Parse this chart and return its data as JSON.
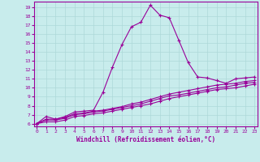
{
  "xlabel": "Windchill (Refroidissement éolien,°C)",
  "background_color": "#c8ecec",
  "line_color": "#990099",
  "grid_color": "#add8d8",
  "x_ticks": [
    0,
    1,
    2,
    3,
    4,
    5,
    6,
    7,
    8,
    9,
    10,
    11,
    12,
    13,
    14,
    15,
    16,
    17,
    18,
    19,
    20,
    21,
    22,
    23
  ],
  "y_ticks": [
    6,
    7,
    8,
    9,
    10,
    11,
    12,
    13,
    14,
    15,
    16,
    17,
    18,
    19
  ],
  "ylim": [
    5.7,
    19.6
  ],
  "xlim": [
    -0.3,
    23.3
  ],
  "series": [
    {
      "x": [
        0,
        1,
        2,
        3,
        4,
        5,
        6,
        7,
        8,
        9,
        10,
        11,
        12,
        13,
        14,
        15,
        16,
        17,
        18,
        19,
        20,
        21,
        22,
        23
      ],
      "y": [
        6.0,
        6.8,
        6.5,
        6.8,
        7.3,
        7.4,
        7.5,
        9.5,
        12.3,
        14.8,
        16.8,
        17.3,
        19.2,
        18.1,
        17.8,
        15.3,
        12.8,
        11.2,
        11.1,
        10.8,
        10.5,
        11.0,
        11.1,
        11.2
      ]
    },
    {
      "x": [
        0,
        1,
        2,
        3,
        4,
        5,
        6,
        7,
        8,
        9,
        10,
        11,
        12,
        13,
        14,
        15,
        16,
        17,
        18,
        19,
        20,
        21,
        22,
        23
      ],
      "y": [
        6.0,
        6.5,
        6.5,
        6.7,
        7.1,
        7.2,
        7.4,
        7.5,
        7.7,
        7.9,
        8.2,
        8.4,
        8.7,
        9.0,
        9.3,
        9.5,
        9.7,
        9.9,
        10.1,
        10.3,
        10.4,
        10.5,
        10.7,
        10.8
      ]
    },
    {
      "x": [
        0,
        1,
        2,
        3,
        4,
        5,
        6,
        7,
        8,
        9,
        10,
        11,
        12,
        13,
        14,
        15,
        16,
        17,
        18,
        19,
        20,
        21,
        22,
        23
      ],
      "y": [
        6.0,
        6.4,
        6.4,
        6.6,
        7.0,
        7.1,
        7.3,
        7.4,
        7.6,
        7.8,
        8.0,
        8.2,
        8.5,
        8.8,
        9.1,
        9.2,
        9.4,
        9.6,
        9.8,
        10.0,
        10.1,
        10.3,
        10.5,
        10.6
      ]
    },
    {
      "x": [
        0,
        1,
        2,
        3,
        4,
        5,
        6,
        7,
        8,
        9,
        10,
        11,
        12,
        13,
        14,
        15,
        16,
        17,
        18,
        19,
        20,
        21,
        22,
        23
      ],
      "y": [
        6.0,
        6.2,
        6.2,
        6.4,
        6.8,
        6.9,
        7.1,
        7.2,
        7.4,
        7.6,
        7.8,
        8.0,
        8.2,
        8.5,
        8.8,
        9.0,
        9.2,
        9.4,
        9.6,
        9.8,
        9.9,
        10.0,
        10.2,
        10.4
      ]
    }
  ]
}
